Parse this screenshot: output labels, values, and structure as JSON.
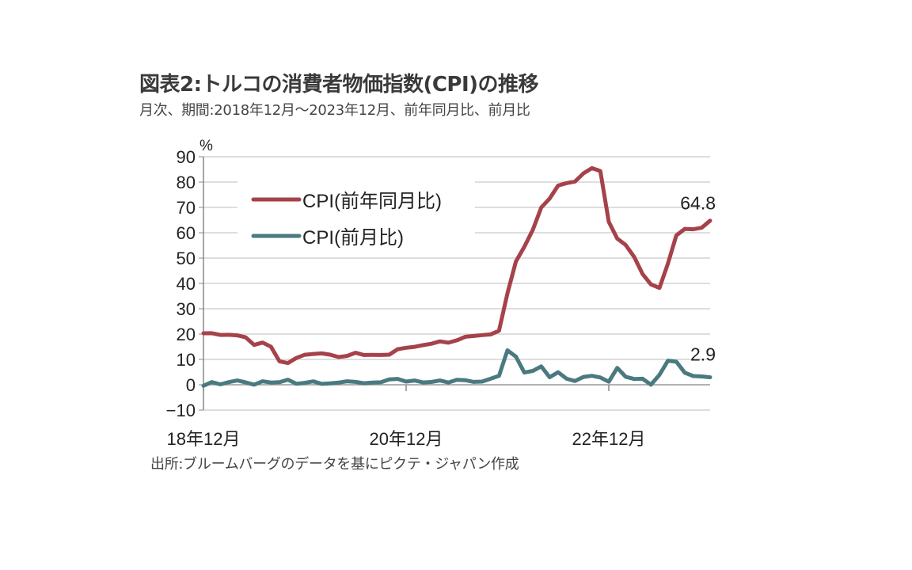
{
  "title": "図表2:トルコの消費者物価指数(CPI)の推移",
  "subtitle": "月次、期間:2018年12月～2023年12月、前年同月比、前月比",
  "source": "出所:ブルームバーグのデータを基にピクテ・ジャパン作成",
  "chart_data": {
    "type": "line",
    "ylabel": "%",
    "ylim": [
      -10,
      90
    ],
    "yticks": [
      "90",
      "80",
      "70",
      "60",
      "50",
      "40",
      "30",
      "20",
      "10",
      "0",
      "−10"
    ],
    "ytick_values": [
      90,
      80,
      70,
      60,
      50,
      40,
      30,
      20,
      10,
      0,
      -10
    ],
    "xticks": [
      "18年12月",
      "20年12月",
      "22年12月"
    ],
    "xtick_index": [
      0,
      24,
      48
    ],
    "grid": true,
    "legend": "top-left",
    "x_start": "2018-12",
    "x_end": "2023-12",
    "series": [
      {
        "name": "CPI(前年同月比)",
        "color": "#a5424a",
        "end_label": "64.8",
        "values": [
          20.3,
          20.35,
          19.67,
          19.71,
          19.5,
          18.71,
          15.72,
          16.65,
          15.01,
          9.26,
          8.55,
          10.56,
          11.84,
          12.15,
          12.37,
          11.86,
          10.94,
          11.39,
          12.62,
          11.76,
          11.77,
          11.75,
          11.89,
          14.03,
          14.6,
          14.97,
          15.61,
          16.19,
          17.14,
          16.59,
          17.53,
          18.95,
          19.25,
          19.58,
          19.89,
          21.31,
          36.08,
          48.69,
          54.44,
          61.14,
          69.97,
          73.5,
          78.62,
          79.6,
          80.21,
          83.45,
          85.51,
          84.39,
          64.27,
          57.68,
          55.18,
          50.51,
          43.68,
          39.59,
          38.21,
          47.83,
          58.94,
          61.53,
          61.36,
          61.98,
          64.77
        ]
      },
      {
        "name": "CPI(前月比)",
        "color": "#4a7a80",
        "end_label": "2.9",
        "values": [
          -0.4,
          1.06,
          0.16,
          1.03,
          1.69,
          0.95,
          0.03,
          1.36,
          0.86,
          0.99,
          2.0,
          0.38,
          0.74,
          1.35,
          0.35,
          0.57,
          0.85,
          1.36,
          1.13,
          0.58,
          0.86,
          0.97,
          2.13,
          2.3,
          1.25,
          1.68,
          0.91,
          1.08,
          1.68,
          0.89,
          1.94,
          1.8,
          1.12,
          1.25,
          2.39,
          3.51,
          13.58,
          11.1,
          4.81,
          5.46,
          7.25,
          2.98,
          4.95,
          2.37,
          1.46,
          3.08,
          3.54,
          2.88,
          1.18,
          6.65,
          3.15,
          2.29,
          2.39,
          0.04,
          3.92,
          9.49,
          9.09,
          4.75,
          3.43,
          3.28,
          2.93
        ]
      }
    ]
  }
}
